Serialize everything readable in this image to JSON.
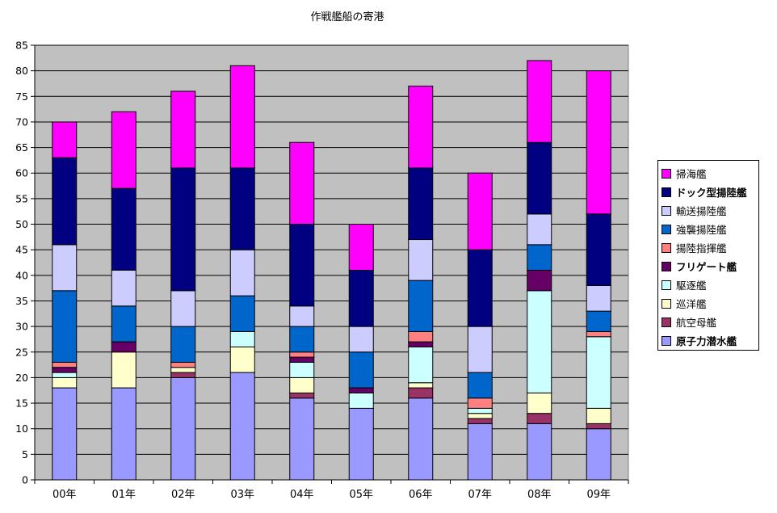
{
  "chart_data": {
    "type": "bar",
    "stacked": true,
    "title": "作戦艦船の寄港",
    "xlabel": "",
    "ylabel": "",
    "ylim": [
      0,
      85
    ],
    "yticks": [
      0,
      5,
      10,
      15,
      20,
      25,
      30,
      35,
      40,
      45,
      50,
      55,
      60,
      65,
      70,
      75,
      80,
      85
    ],
    "grid": true,
    "legend_position": "right",
    "plot_background": "#c0c0c0",
    "categories": [
      "00年",
      "01年",
      "02年",
      "03年",
      "04年",
      "05年",
      "06年",
      "07年",
      "08年",
      "09年"
    ],
    "series": [
      {
        "name": "原子力潜水艦",
        "color": "#9999ff",
        "bold": true,
        "values": [
          18,
          18,
          20,
          21,
          16,
          14,
          16,
          11,
          11,
          10
        ]
      },
      {
        "name": "航空母艦",
        "color": "#993366",
        "bold": false,
        "values": [
          0,
          0,
          1,
          0,
          1,
          0,
          2,
          1,
          2,
          1
        ]
      },
      {
        "name": "巡洋艦",
        "color": "#ffffcc",
        "bold": false,
        "values": [
          2,
          7,
          1,
          5,
          3,
          0,
          1,
          1,
          4,
          3
        ]
      },
      {
        "name": "駆逐艦",
        "color": "#ccffff",
        "bold": false,
        "values": [
          1,
          0,
          0,
          3,
          3,
          3,
          7,
          1,
          20,
          14
        ]
      },
      {
        "name": "フリゲート艦",
        "color": "#660066",
        "bold": true,
        "values": [
          1,
          2,
          0,
          0,
          1,
          1,
          1,
          0,
          4,
          0
        ]
      },
      {
        "name": "揚陸指揮艦",
        "color": "#ff8080",
        "bold": false,
        "values": [
          1,
          0,
          1,
          0,
          1,
          0,
          2,
          2,
          0,
          1
        ]
      },
      {
        "name": "強襲揚陸艦",
        "color": "#0066cc",
        "bold": false,
        "values": [
          14,
          7,
          7,
          7,
          5,
          7,
          10,
          5,
          5,
          4
        ]
      },
      {
        "name": "輸送揚陸艦",
        "color": "#ccccff",
        "bold": false,
        "values": [
          9,
          7,
          7,
          9,
          4,
          5,
          8,
          9,
          6,
          5
        ]
      },
      {
        "name": "ドック型揚陸艦",
        "color": "#000080",
        "bold": true,
        "values": [
          17,
          16,
          24,
          16,
          16,
          11,
          14,
          15,
          14,
          14
        ]
      },
      {
        "name": "掃海艦",
        "color": "#ff00ff",
        "bold": false,
        "values": [
          7,
          15,
          15,
          20,
          16,
          9,
          16,
          15,
          16,
          28
        ]
      }
    ]
  }
}
